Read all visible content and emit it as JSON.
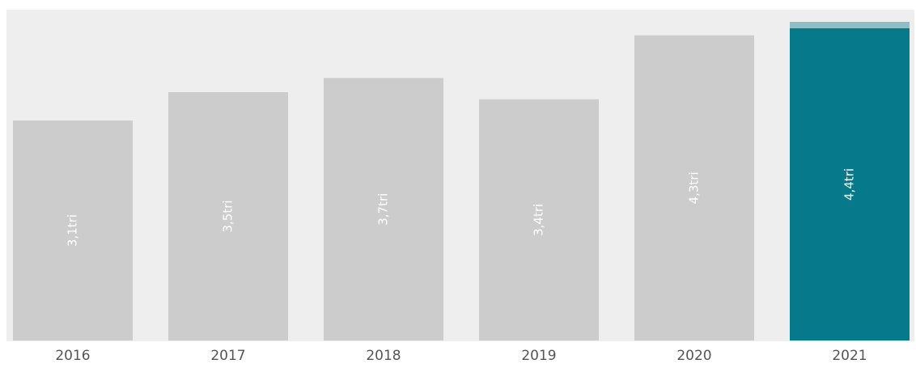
{
  "chart_data": {
    "type": "bar",
    "categories": [
      "2016",
      "2017",
      "2018",
      "2019",
      "2020",
      "2021"
    ],
    "values": [
      3.1,
      3.5,
      3.7,
      3.4,
      4.3,
      4.4
    ],
    "value_labels": [
      "3,1tri",
      "3,5tri",
      "3,7tri",
      "3,4tri",
      "4,3tri",
      "4,4tri"
    ],
    "colors": [
      "#cccccc",
      "#cccccc",
      "#cccccc",
      "#cccccc",
      "#cccccc",
      "#067a8a"
    ]
  }
}
